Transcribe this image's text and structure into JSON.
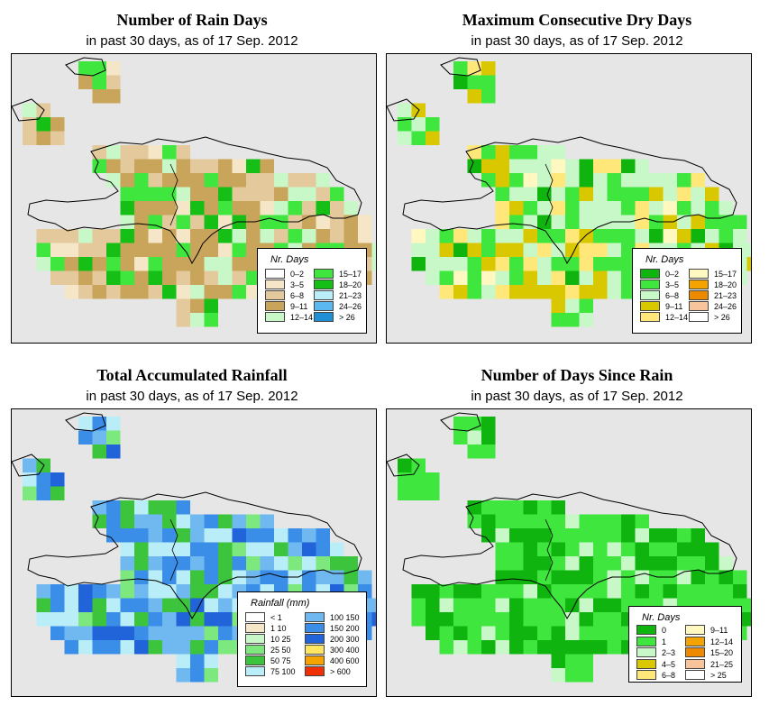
{
  "colors": {
    "background": "#e6e6e6",
    "coast": "#000000"
  },
  "panels": [
    {
      "title": "Number of Rain Days",
      "subtitle": "in past 30 days, as of  17 Sep. 2012",
      "legend_title": "Nr. Days",
      "legend": [
        {
          "label": "0–2",
          "color": "#ffffff"
        },
        {
          "label": "3–5",
          "color": "#f5e6c8"
        },
        {
          "label": "6–8",
          "color": "#e3c99b"
        },
        {
          "label": "9–11",
          "color": "#c9a55b"
        },
        {
          "label": "12–14",
          "color": "#c8f7c8"
        },
        {
          "label": "15–17",
          "color": "#3ee63e"
        },
        {
          "label": "18–20",
          "color": "#16bf16"
        },
        {
          "label": "21–23",
          "color": "#b9edf7"
        },
        {
          "label": "24–26",
          "color": "#5bb8f0"
        },
        {
          "label": "> 26",
          "color": "#1f8fd6"
        }
      ]
    },
    {
      "title": "Maximum Consecutive Dry Days",
      "subtitle": "in past 30 days, as of  17 Sep. 2012",
      "legend_title": "Nr. Days",
      "legend": [
        {
          "label": "0–2",
          "color": "#0fb40f"
        },
        {
          "label": "3–5",
          "color": "#3ee63e"
        },
        {
          "label": "6–8",
          "color": "#c8f7c8"
        },
        {
          "label": "9–11",
          "color": "#d9c800"
        },
        {
          "label": "12–14",
          "color": "#ffe879"
        },
        {
          "label": "15–17",
          "color": "#fff8c0"
        },
        {
          "label": "18–20",
          "color": "#f5a300"
        },
        {
          "label": "21–23",
          "color": "#ee8a00"
        },
        {
          "label": "24–26",
          "color": "#f7c49b"
        },
        {
          "label": "> 26",
          "color": "#ffffff"
        }
      ]
    },
    {
      "title": "Total Accumulated Rainfall",
      "subtitle": "in past 30 days, as of  17 Sep. 2012",
      "legend_title": "Rainfall (mm)",
      "legend": [
        {
          "label": "< 1",
          "color": "#ffffff"
        },
        {
          "label": "1   10",
          "color": "#f5e6c8"
        },
        {
          "label": "10   25",
          "color": "#c8f7c8"
        },
        {
          "label": "25   50",
          "color": "#7de87d"
        },
        {
          "label": "50   75",
          "color": "#3cc43c"
        },
        {
          "label": "75  100",
          "color": "#b9edf7"
        },
        {
          "label": "100  150",
          "color": "#6fb8f0"
        },
        {
          "label": "150  200",
          "color": "#3b8ee8"
        },
        {
          "label": "200  300",
          "color": "#2163d8"
        },
        {
          "label": "300  400",
          "color": "#ffe560"
        },
        {
          "label": "400  600",
          "color": "#f5a300"
        },
        {
          "label": "> 600",
          "color": "#f03000"
        }
      ]
    },
    {
      "title": "Number of Days Since Rain",
      "subtitle": "in past 30 days, as of  17 Sep. 2012",
      "legend_title": "Nr. Days",
      "legend": [
        {
          "label": "0",
          "color": "#0fb40f"
        },
        {
          "label": "1",
          "color": "#3ee63e"
        },
        {
          "label": "2–3",
          "color": "#c8f7c8"
        },
        {
          "label": "4–5",
          "color": "#d9c800"
        },
        {
          "label": "6–8",
          "color": "#ffe879"
        },
        {
          "label": "9–11",
          "color": "#fff8c0"
        },
        {
          "label": "12–14",
          "color": "#f5a300"
        },
        {
          "label": "15–20",
          "color": "#ee8a00"
        },
        {
          "label": "21–25",
          "color": "#f7c49b"
        },
        {
          "label": "> 25",
          "color": "#ffffff"
        }
      ]
    }
  ]
}
